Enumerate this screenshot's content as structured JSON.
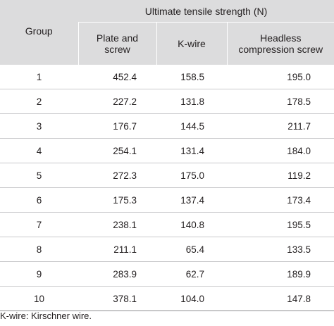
{
  "table": {
    "group_header": "Group",
    "spanning_header": "Ultimate tensile strength (N)",
    "columns": [
      {
        "line1": "Plate and",
        "line2": "screw"
      },
      {
        "line1": "K-wire",
        "line2": ""
      },
      {
        "line1": "Headless",
        "line2": "compression screw"
      }
    ],
    "rows": [
      {
        "group": "1",
        "plate": "452.4",
        "kwire": "158.5",
        "headless": "195.0"
      },
      {
        "group": "2",
        "plate": "227.2",
        "kwire": "131.8",
        "headless": "178.5"
      },
      {
        "group": "3",
        "plate": "176.7",
        "kwire": "144.5",
        "headless": "211.7"
      },
      {
        "group": "4",
        "plate": "254.1",
        "kwire": "131.4",
        "headless": "184.0"
      },
      {
        "group": "5",
        "plate": "272.3",
        "kwire": "175.0",
        "headless": "119.2"
      },
      {
        "group": "6",
        "plate": "175.3",
        "kwire": "137.4",
        "headless": "173.4"
      },
      {
        "group": "7",
        "plate": "238.1",
        "kwire": "140.8",
        "headless": "195.5"
      },
      {
        "group": "8",
        "plate": "211.1",
        "kwire": "65.4",
        "headless": "133.5"
      },
      {
        "group": "9",
        "plate": "283.9",
        "kwire": "62.7",
        "headless": "189.9"
      },
      {
        "group": "10",
        "plate": "378.1",
        "kwire": "104.0",
        "headless": "147.8"
      }
    ]
  },
  "footnote": "K-wire: Kirschner wire."
}
